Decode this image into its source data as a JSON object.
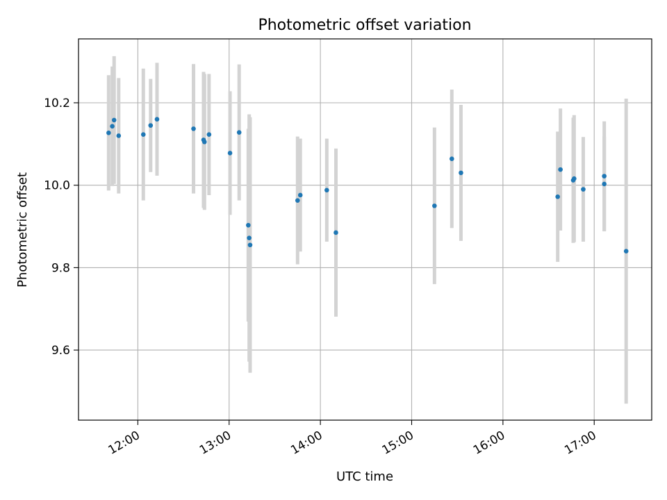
{
  "chart_data": {
    "type": "scatter",
    "title": "Photometric offset variation",
    "xlabel": "UTC time",
    "ylabel": "Photometric offset",
    "grid": true,
    "xlim": [
      11.35,
      17.63
    ],
    "ylim": [
      9.43,
      10.355
    ],
    "x_ticks": [
      {
        "value": 12,
        "label": "12:00"
      },
      {
        "value": 13,
        "label": "13:00"
      },
      {
        "value": 14,
        "label": "14:00"
      },
      {
        "value": 15,
        "label": "15:00"
      },
      {
        "value": 16,
        "label": "16:00"
      },
      {
        "value": 17,
        "label": "17:00"
      }
    ],
    "y_ticks": [
      {
        "value": 9.6,
        "label": "9.6"
      },
      {
        "value": 9.8,
        "label": "9.8"
      },
      {
        "value": 10.0,
        "label": "10.0"
      },
      {
        "value": 10.2,
        "label": "10.2"
      }
    ],
    "point_color": "#1f77b4",
    "errorbar_color": "#d3d3d3",
    "points": [
      {
        "x": 11.68,
        "y": 10.127,
        "err": 0.14
      },
      {
        "x": 11.72,
        "y": 10.143,
        "err": 0.145
      },
      {
        "x": 11.74,
        "y": 10.158,
        "err": 0.155
      },
      {
        "x": 11.79,
        "y": 10.12,
        "err": 0.14
      },
      {
        "x": 12.06,
        "y": 10.123,
        "err": 0.16
      },
      {
        "x": 12.14,
        "y": 10.145,
        "err": 0.113
      },
      {
        "x": 12.21,
        "y": 10.16,
        "err": 0.137
      },
      {
        "x": 12.61,
        "y": 10.137,
        "err": 0.157
      },
      {
        "x": 12.72,
        "y": 10.11,
        "err": 0.165
      },
      {
        "x": 12.73,
        "y": 10.105,
        "err": 0.165
      },
      {
        "x": 12.78,
        "y": 10.123,
        "err": 0.147
      },
      {
        "x": 13.01,
        "y": 10.078,
        "err": 0.15
      },
      {
        "x": 13.11,
        "y": 10.128,
        "err": 0.165
      },
      {
        "x": 13.21,
        "y": 9.903,
        "err": 0.234
      },
      {
        "x": 13.22,
        "y": 9.872,
        "err": 0.3
      },
      {
        "x": 13.23,
        "y": 9.855,
        "err": 0.31
      },
      {
        "x": 13.75,
        "y": 9.963,
        "err": 0.155
      },
      {
        "x": 13.78,
        "y": 9.976,
        "err": 0.137
      },
      {
        "x": 14.07,
        "y": 9.988,
        "err": 0.125
      },
      {
        "x": 14.17,
        "y": 9.885,
        "err": 0.204
      },
      {
        "x": 15.25,
        "y": 9.95,
        "err": 0.19
      },
      {
        "x": 15.44,
        "y": 10.064,
        "err": 0.168
      },
      {
        "x": 15.54,
        "y": 10.03,
        "err": 0.165
      },
      {
        "x": 16.6,
        "y": 9.972,
        "err": 0.158
      },
      {
        "x": 16.63,
        "y": 10.038,
        "err": 0.148
      },
      {
        "x": 16.77,
        "y": 10.012,
        "err": 0.152
      },
      {
        "x": 16.78,
        "y": 10.016,
        "err": 0.154
      },
      {
        "x": 16.88,
        "y": 9.99,
        "err": 0.127
      },
      {
        "x": 17.11,
        "y": 10.022,
        "err": 0.133
      },
      {
        "x": 17.11,
        "y": 10.003,
        "err": 0.115
      },
      {
        "x": 17.35,
        "y": 9.84,
        "err": 0.37
      }
    ]
  }
}
